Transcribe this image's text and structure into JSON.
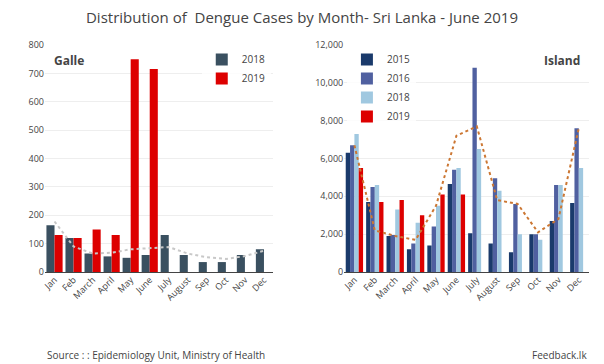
{
  "title": "Distribution of  Dengue Cases by Month- Sri Lanka - June 2019",
  "annotations": [
    "Source : : Epidemiology Unit, Ministry of Health",
    "Feedback.lk"
  ],
  "chart_data": [
    {
      "type": "bar",
      "title": "Galle",
      "categories": [
        "Jan",
        "Feb",
        "March",
        "April",
        "May",
        "June",
        "July",
        "August",
        "Sep",
        "Oct",
        "Nov",
        "Dec"
      ],
      "series": [
        {
          "name": "2018",
          "color": "#3a5060",
          "values": [
            165,
            120,
            65,
            55,
            50,
            60,
            130,
            60,
            35,
            35,
            60,
            80
          ]
        },
        {
          "name": "2019",
          "color": "#dd0000",
          "values": [
            130,
            120,
            150,
            130,
            750,
            715,
            0,
            0,
            0,
            0,
            0,
            0
          ]
        },
        {
          "type": "line",
          "line_style": "dotted",
          "color": "#c8c8c8",
          "values": [
            178,
            90,
            65,
            68,
            80,
            85,
            88,
            65,
            52,
            46,
            56,
            75
          ]
        }
      ],
      "ylim": [
        0,
        800
      ],
      "yticks": [
        0,
        100,
        200,
        300,
        400,
        500,
        600,
        700,
        800
      ],
      "grid": true,
      "legend": "upper right"
    },
    {
      "type": "bar",
      "title": "Island",
      "categories": [
        "Jan",
        "Feb",
        "March",
        "April",
        "May",
        "June",
        "July",
        "August",
        "Sep",
        "Oct",
        "Nov",
        "Dec"
      ],
      "series": [
        {
          "name": "2015",
          "color": "#1a3a6b",
          "values": [
            6300,
            3700,
            1900,
            1200,
            1400,
            4650,
            2050,
            1500,
            1050,
            2000,
            2700,
            3650
          ]
        },
        {
          "name": "2016",
          "color": "#5060a0",
          "values": [
            6700,
            4500,
            1950,
            1500,
            2400,
            5400,
            10800,
            4950,
            3600,
            2000,
            4600,
            7600
          ]
        },
        {
          "name": "2018",
          "color": "#a0c8e0",
          "values": [
            7300,
            4600,
            3300,
            2600,
            3500,
            5500,
            6500,
            4300,
            2000,
            1700,
            4600,
            5500
          ]
        },
        {
          "name": "2019",
          "color": "#dd0000",
          "values": [
            5500,
            3700,
            3800,
            3000,
            4100,
            4100,
            0,
            0,
            0,
            0,
            0,
            0
          ]
        },
        {
          "type": "line",
          "line_style": "dotted",
          "color": "#cc7733",
          "values": [
            6700,
            2200,
            1900,
            1700,
            3500,
            7200,
            7700,
            3800,
            3600,
            2100,
            2800,
            7600
          ]
        }
      ],
      "ylim": [
        0,
        12000
      ],
      "yticks": [
        0,
        {
          "value": 2000,
          "label": "2,000"
        },
        {
          "value": 4000,
          "label": "4,000"
        },
        {
          "value": 6000,
          "label": "6,000"
        },
        {
          "value": 8000,
          "label": "8,000"
        },
        {
          "value": 10000,
          "label": "10,000"
        },
        {
          "value": 12000,
          "label": "12,000"
        }
      ],
      "grid": true,
      "legend": "upper left"
    }
  ]
}
